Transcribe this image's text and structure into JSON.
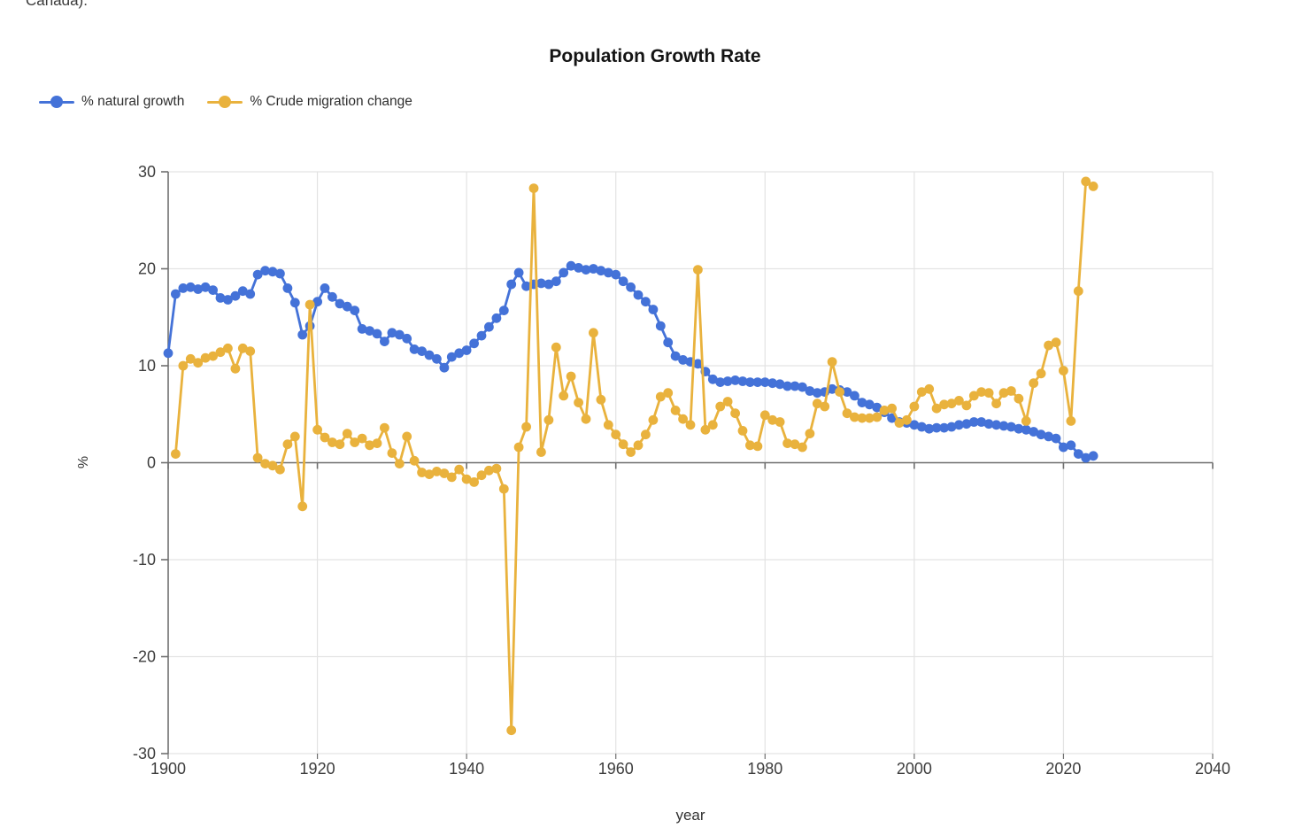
{
  "page": {
    "clipped_text_top": "Canada)."
  },
  "axes": {
    "x_label": "year",
    "y_label": "%"
  },
  "chart_data": {
    "type": "line",
    "title": "Population Growth Rate",
    "xlabel": "year",
    "ylabel": "%",
    "xlim": [
      1900,
      2040
    ],
    "ylim": [
      -30,
      30
    ],
    "x_ticks": [
      1900,
      1920,
      1940,
      1960,
      1980,
      2000,
      2020,
      2040
    ],
    "y_ticks": [
      30,
      20,
      10,
      0,
      -10,
      -20,
      -30
    ],
    "grid": true,
    "legend_position": "top-left",
    "colors": {
      "grid": "#e3e3e3",
      "axis": "#6f6f6f",
      "tick_text": "#3d3d3d",
      "title_text": "#141414"
    },
    "series": [
      {
        "name": "% natural growth",
        "color": "#4472d8",
        "start_year": 1900,
        "values": [
          11.3,
          17.4,
          18.0,
          18.1,
          17.9,
          18.1,
          17.8,
          17.0,
          16.8,
          17.2,
          17.7,
          17.4,
          19.4,
          19.8,
          19.7,
          19.5,
          18.0,
          16.5,
          13.2,
          14.1,
          16.6,
          18.0,
          17.1,
          16.4,
          16.1,
          15.7,
          13.8,
          13.6,
          13.3,
          12.5,
          13.4,
          13.2,
          12.8,
          11.7,
          11.5,
          11.1,
          10.7,
          9.8,
          10.9,
          11.3,
          11.6,
          12.3,
          13.1,
          14.0,
          14.9,
          15.7,
          18.4,
          19.6,
          18.2,
          18.4,
          18.5,
          18.4,
          18.7,
          19.6,
          20.3,
          20.1,
          19.9,
          20.0,
          19.8,
          19.6,
          19.4,
          18.7,
          18.1,
          17.3,
          16.6,
          15.8,
          14.1,
          12.4,
          11.0,
          10.6,
          10.4,
          10.2,
          9.4,
          8.6,
          8.3,
          8.4,
          8.5,
          8.4,
          8.3,
          8.3,
          8.3,
          8.2,
          8.1,
          7.9,
          7.9,
          7.8,
          7.4,
          7.2,
          7.3,
          7.6,
          7.5,
          7.3,
          6.9,
          6.2,
          6.0,
          5.7,
          5.2,
          4.6,
          4.2,
          4.1,
          3.9,
          3.7,
          3.5,
          3.6,
          3.6,
          3.7,
          3.9,
          4.0,
          4.2,
          4.2,
          4.0,
          3.9,
          3.8,
          3.7,
          3.5,
          3.4,
          3.2,
          2.9,
          2.7,
          2.5,
          1.6,
          1.8,
          0.9,
          0.5,
          0.7
        ]
      },
      {
        "name": "% Crude migration change",
        "color": "#e9b23d",
        "start_year": 1901,
        "values": [
          0.9,
          10.0,
          10.7,
          10.3,
          10.8,
          11.0,
          11.4,
          11.8,
          9.7,
          11.8,
          11.5,
          0.5,
          -0.1,
          -0.3,
          -0.7,
          1.9,
          2.7,
          -4.5,
          16.3,
          3.4,
          2.6,
          2.1,
          1.9,
          3.0,
          2.1,
          2.5,
          1.8,
          2.0,
          3.6,
          1.0,
          -0.1,
          2.7,
          0.2,
          -1.0,
          -1.2,
          -0.9,
          -1.1,
          -1.5,
          -0.7,
          -1.7,
          -2.0,
          -1.3,
          -0.8,
          -0.6,
          -2.7,
          -27.6,
          1.6,
          3.7,
          28.3,
          1.1,
          4.4,
          11.9,
          6.9,
          8.9,
          6.2,
          4.5,
          13.4,
          6.5,
          3.9,
          2.9,
          1.9,
          1.1,
          1.8,
          2.9,
          4.4,
          6.8,
          7.2,
          5.4,
          4.5,
          3.9,
          19.9,
          3.4,
          3.9,
          5.8,
          6.3,
          5.1,
          3.3,
          1.8,
          1.7,
          4.9,
          4.4,
          4.2,
          2.0,
          1.9,
          1.6,
          3.0,
          6.1,
          5.8,
          10.4,
          7.3,
          5.1,
          4.7,
          4.6,
          4.6,
          4.7,
          5.4,
          5.6,
          4.1,
          4.4,
          5.8,
          7.3,
          7.6,
          5.6,
          6.0,
          6.1,
          6.4,
          5.9,
          6.9,
          7.3,
          7.2,
          6.1,
          7.2,
          7.4,
          6.6,
          4.3,
          8.2,
          9.2,
          12.1,
          12.4,
          9.5,
          4.3,
          17.7,
          29.0,
          28.5
        ]
      }
    ]
  }
}
